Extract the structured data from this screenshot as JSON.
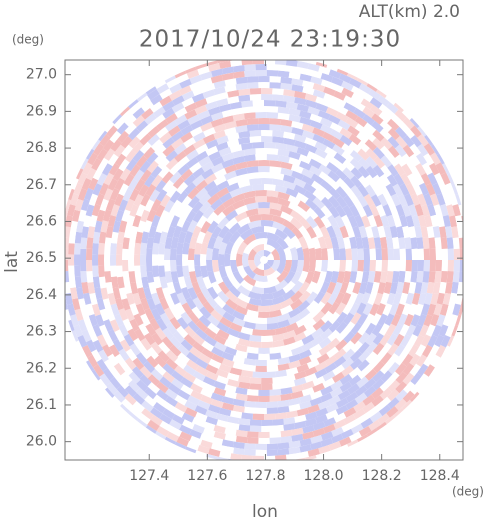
{
  "chart_data": {
    "type": "radar-field",
    "title": "2017/10/24 23:19:30",
    "subtitle": "ALT(km) 2.0",
    "x_label": "lon",
    "y_label": "lat",
    "x_unit": "(deg)",
    "y_unit": "(deg)",
    "xlim": [
      127.11,
      128.48
    ],
    "ylim": [
      25.95,
      27.04
    ],
    "xticks": [
      127.4,
      127.6,
      127.8,
      {
        "value": 128,
        "label": "128.0"
      },
      128.2,
      128.4
    ],
    "yticks": [
      {
        "value": 26,
        "label": "26.0"
      },
      26.1,
      26.2,
      26.3,
      26.4,
      26.5,
      26.6,
      26.7,
      26.8,
      26.9,
      {
        "value": 27,
        "label": "27.0"
      }
    ]
  }
}
